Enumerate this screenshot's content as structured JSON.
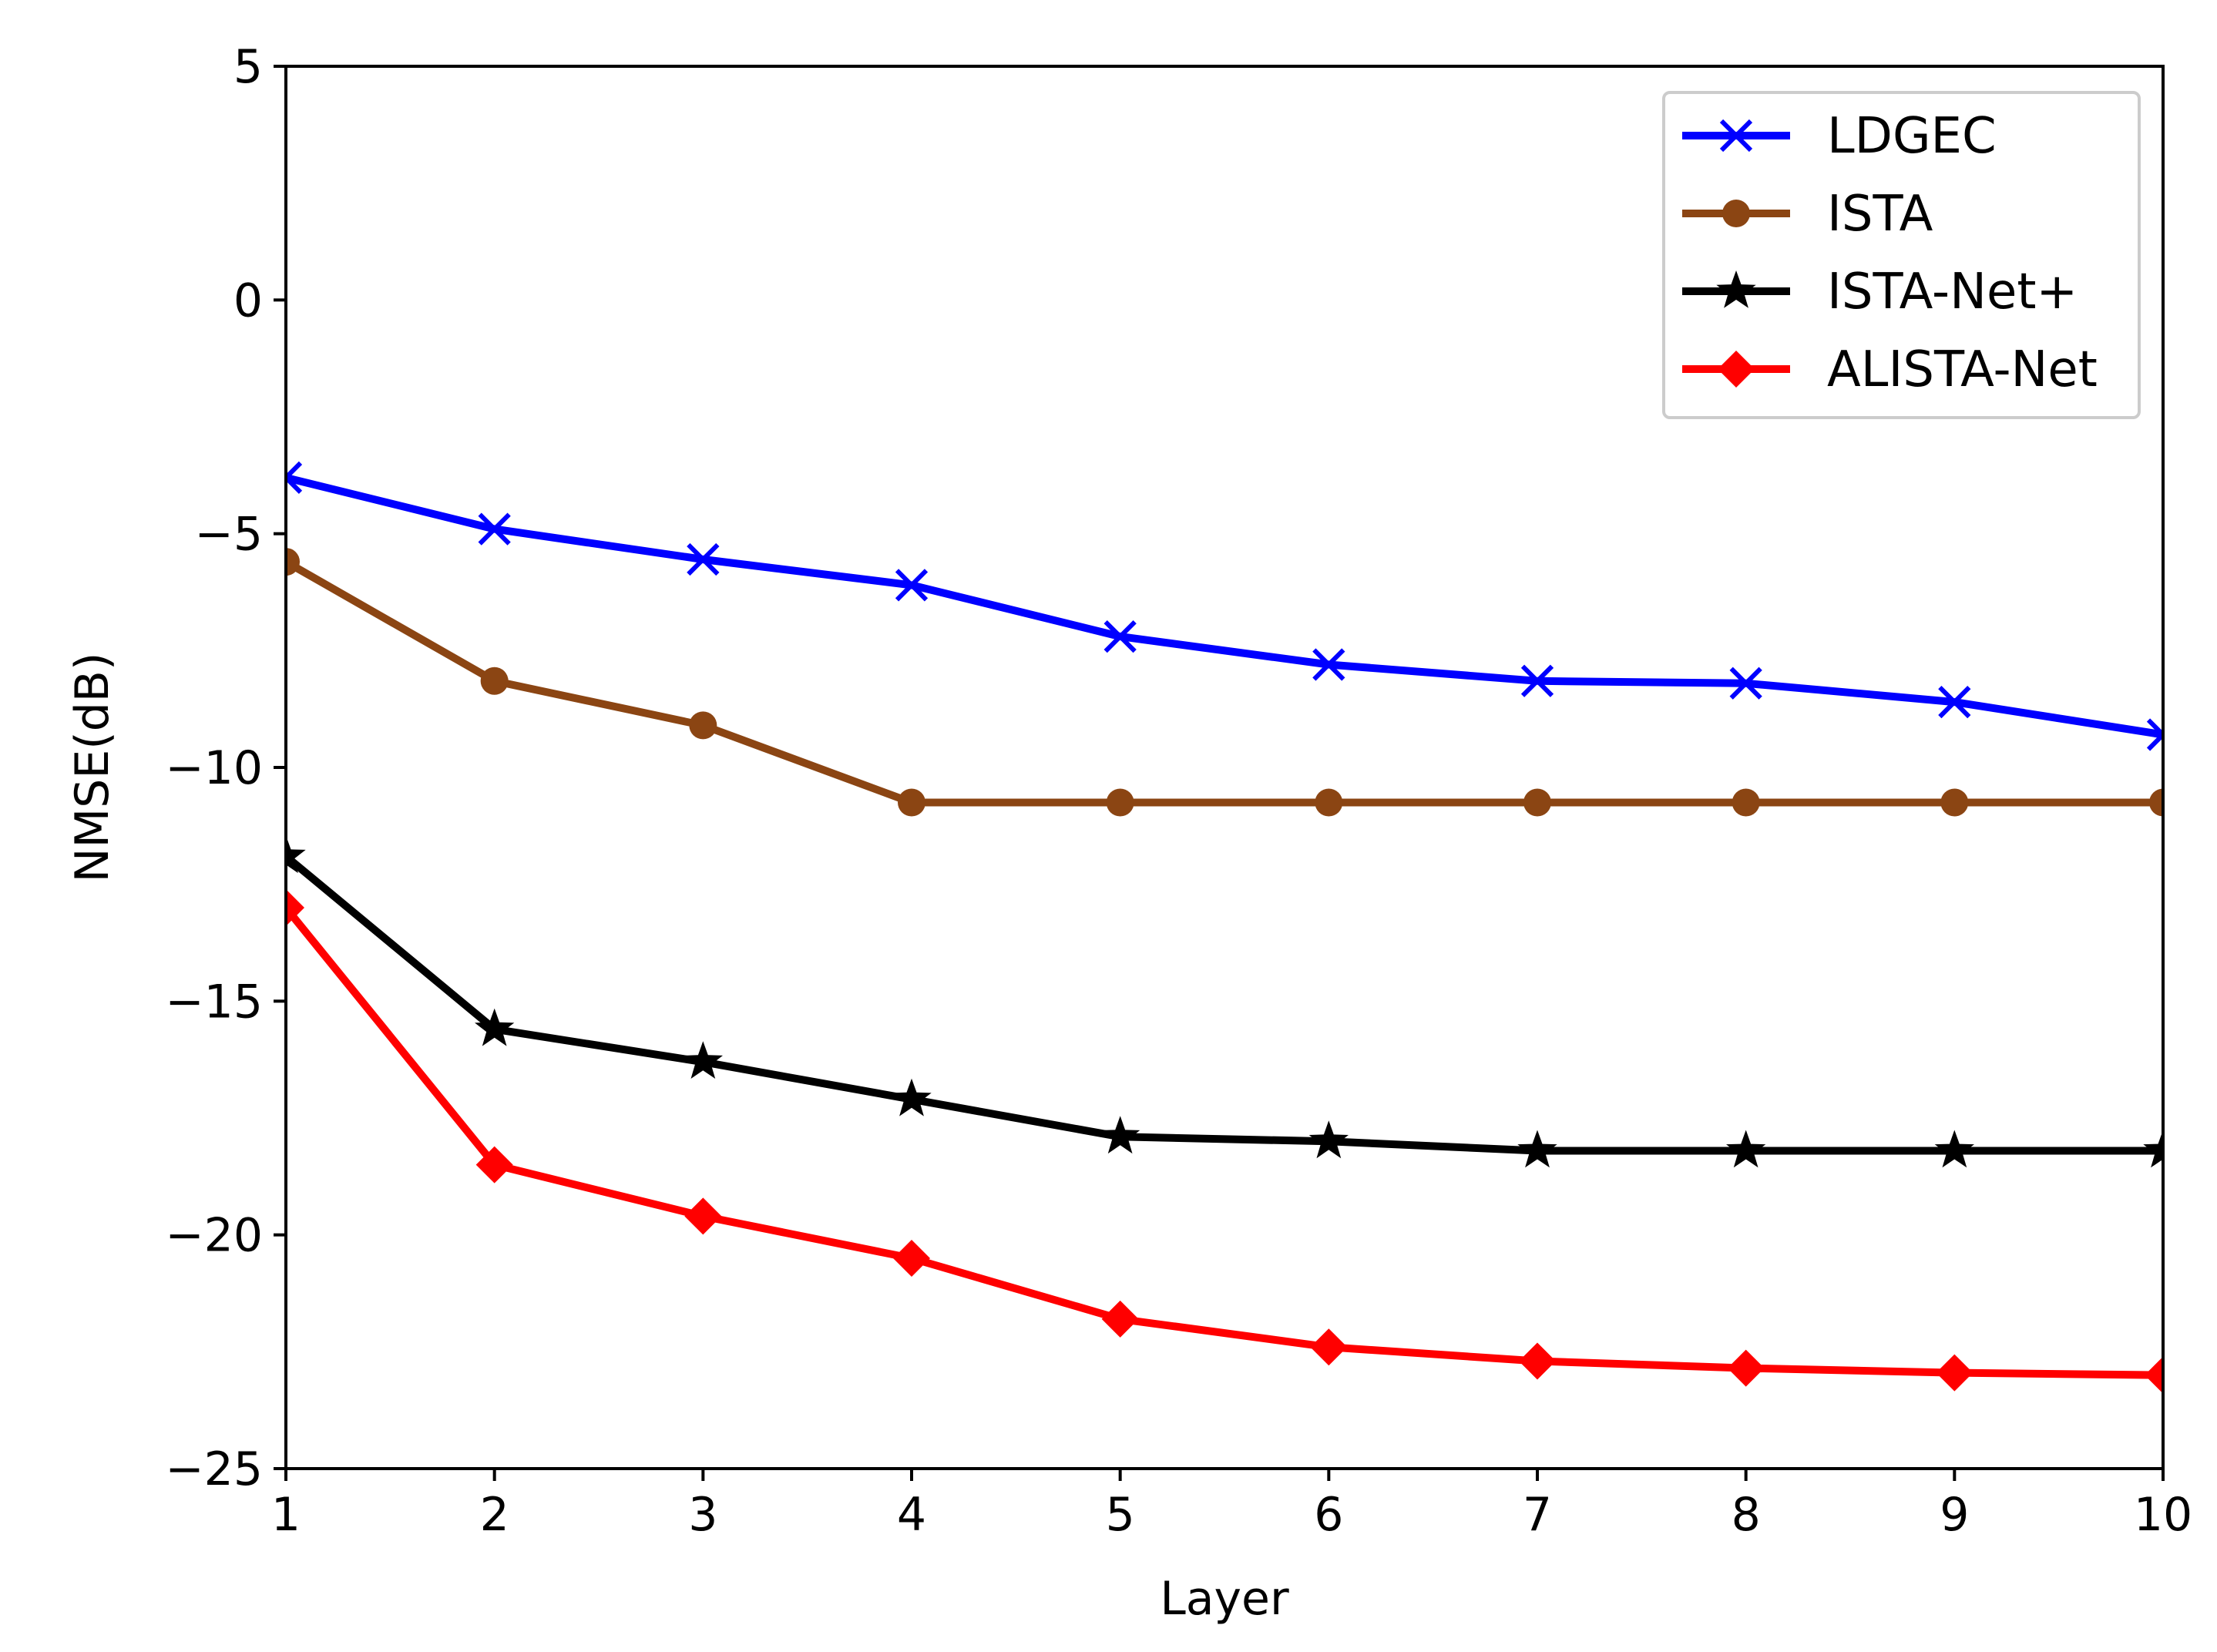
{
  "chart_data": {
    "type": "line",
    "title": "",
    "xlabel": "Layer",
    "ylabel": "NMSE(dB)",
    "xlim": [
      1,
      10
    ],
    "ylim": [
      -25,
      5
    ],
    "xticks": [
      1,
      2,
      3,
      4,
      5,
      6,
      7,
      8,
      9,
      10
    ],
    "yticks": [
      -25,
      -20,
      -15,
      -10,
      -5,
      0,
      5
    ],
    "xtick_labels": [
      "1",
      "2",
      "3",
      "4",
      "5",
      "6",
      "7",
      "8",
      "9",
      "10"
    ],
    "ytick_labels": [
      "−25",
      "−20",
      "−15",
      "−10",
      "−5",
      "0",
      "5"
    ],
    "grid": false,
    "legend_position": "top-right",
    "x": [
      1,
      2,
      3,
      4,
      5,
      6,
      7,
      8,
      9,
      10
    ],
    "series": [
      {
        "name": "LDGEC",
        "color": "#0000ff",
        "marker": "x",
        "values": [
          -3.8,
          -4.9,
          -5.55,
          -6.1,
          -7.2,
          -7.8,
          -8.15,
          -8.2,
          -8.6,
          -9.3
        ]
      },
      {
        "name": "ISTA",
        "color": "#8b4513",
        "marker": "circle",
        "values": [
          -5.6,
          -8.15,
          -9.1,
          -10.75,
          -10.75,
          -10.75,
          -10.75,
          -10.75,
          -10.75,
          -10.75
        ]
      },
      {
        "name": "ISTA-Net+",
        "color": "#000000",
        "marker": "star",
        "values": [
          -11.9,
          -15.6,
          -16.3,
          -17.1,
          -17.9,
          -18.0,
          -18.2,
          -18.2,
          -18.2,
          -18.2
        ]
      },
      {
        "name": "ALISTA-Net",
        "color": "#ff0000",
        "marker": "diamond",
        "values": [
          -13.0,
          -18.5,
          -19.6,
          -20.5,
          -21.8,
          -22.4,
          -22.7,
          -22.85,
          -22.95,
          -23.0
        ]
      }
    ]
  }
}
